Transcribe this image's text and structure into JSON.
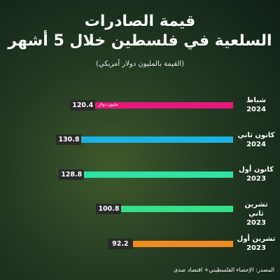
{
  "chart_data": {
    "type": "bar",
    "orientation": "horizontal",
    "title": "قيمة الصادرات",
    "title_line2": "السلعية في فلسطين خلال 5 أشهر",
    "subtitle": "(القيمة بالمليون دولار أمريكي)",
    "categories": [
      "شباط\n2024",
      "كانون ثاني\n2024",
      "كانون أول\n2023",
      "تشرين ثاني\n2023",
      "تشرين أول\n2023"
    ],
    "values": [
      120.4,
      130.8,
      128.8,
      100.8,
      92.2
    ],
    "colors": [
      "#e8177e",
      "#1cb3e2",
      "#2ee3a4",
      "#35e08a",
      "#f28a22"
    ],
    "unit_annotation": "مليون دولار",
    "source": "المصدر: الإحصاء الفلسطيني+ اقتصاد صدى"
  }
}
